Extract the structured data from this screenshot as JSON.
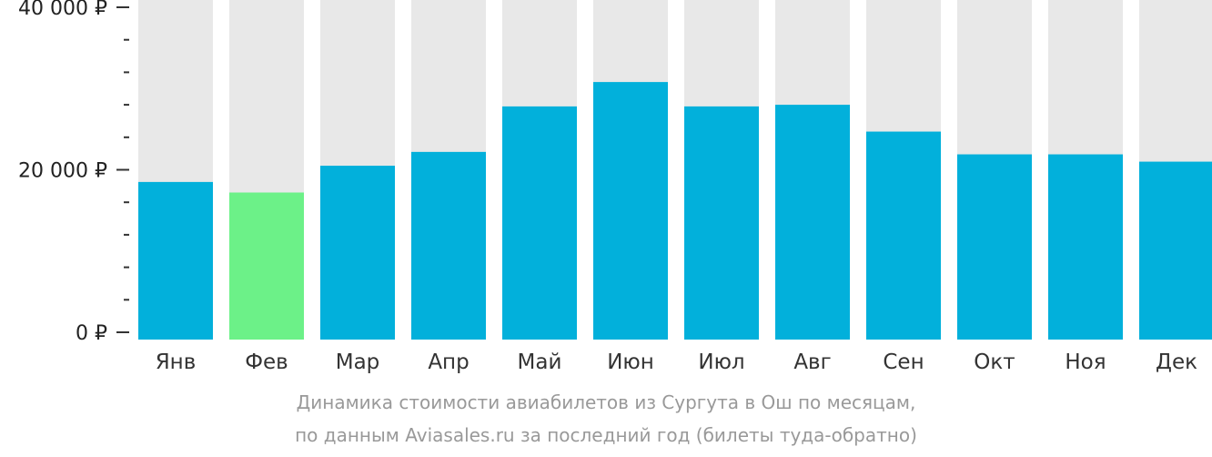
{
  "chart_data": {
    "type": "bar",
    "categories": [
      "Янв",
      "Фев",
      "Мар",
      "Апр",
      "Май",
      "Июн",
      "Июл",
      "Авг",
      "Сен",
      "Окт",
      "Ноя",
      "Дек"
    ],
    "values": [
      18500,
      17200,
      20500,
      22200,
      27800,
      30800,
      27800,
      28000,
      24700,
      21900,
      21900,
      21000
    ],
    "highlight_index": 1,
    "ylim": [
      0,
      40000
    ],
    "yticks": [
      {
        "value": 0,
        "label": "0 ₽"
      },
      {
        "value": 20000,
        "label": "20 000 ₽"
      },
      {
        "value": 40000,
        "label": "40 000 ₽"
      }
    ],
    "minor_tick_step": 4000,
    "colors": {
      "bar": "#02b0db",
      "highlight": "#6cf188",
      "background_bar": "#e8e8e8",
      "axis": "#333333"
    }
  },
  "caption": {
    "line1": "Динамика стоимости авиабилетов из Сургута в Ош по месяцам,",
    "line2": "по данным Aviasales.ru за последний год (билеты туда-обратно)"
  }
}
